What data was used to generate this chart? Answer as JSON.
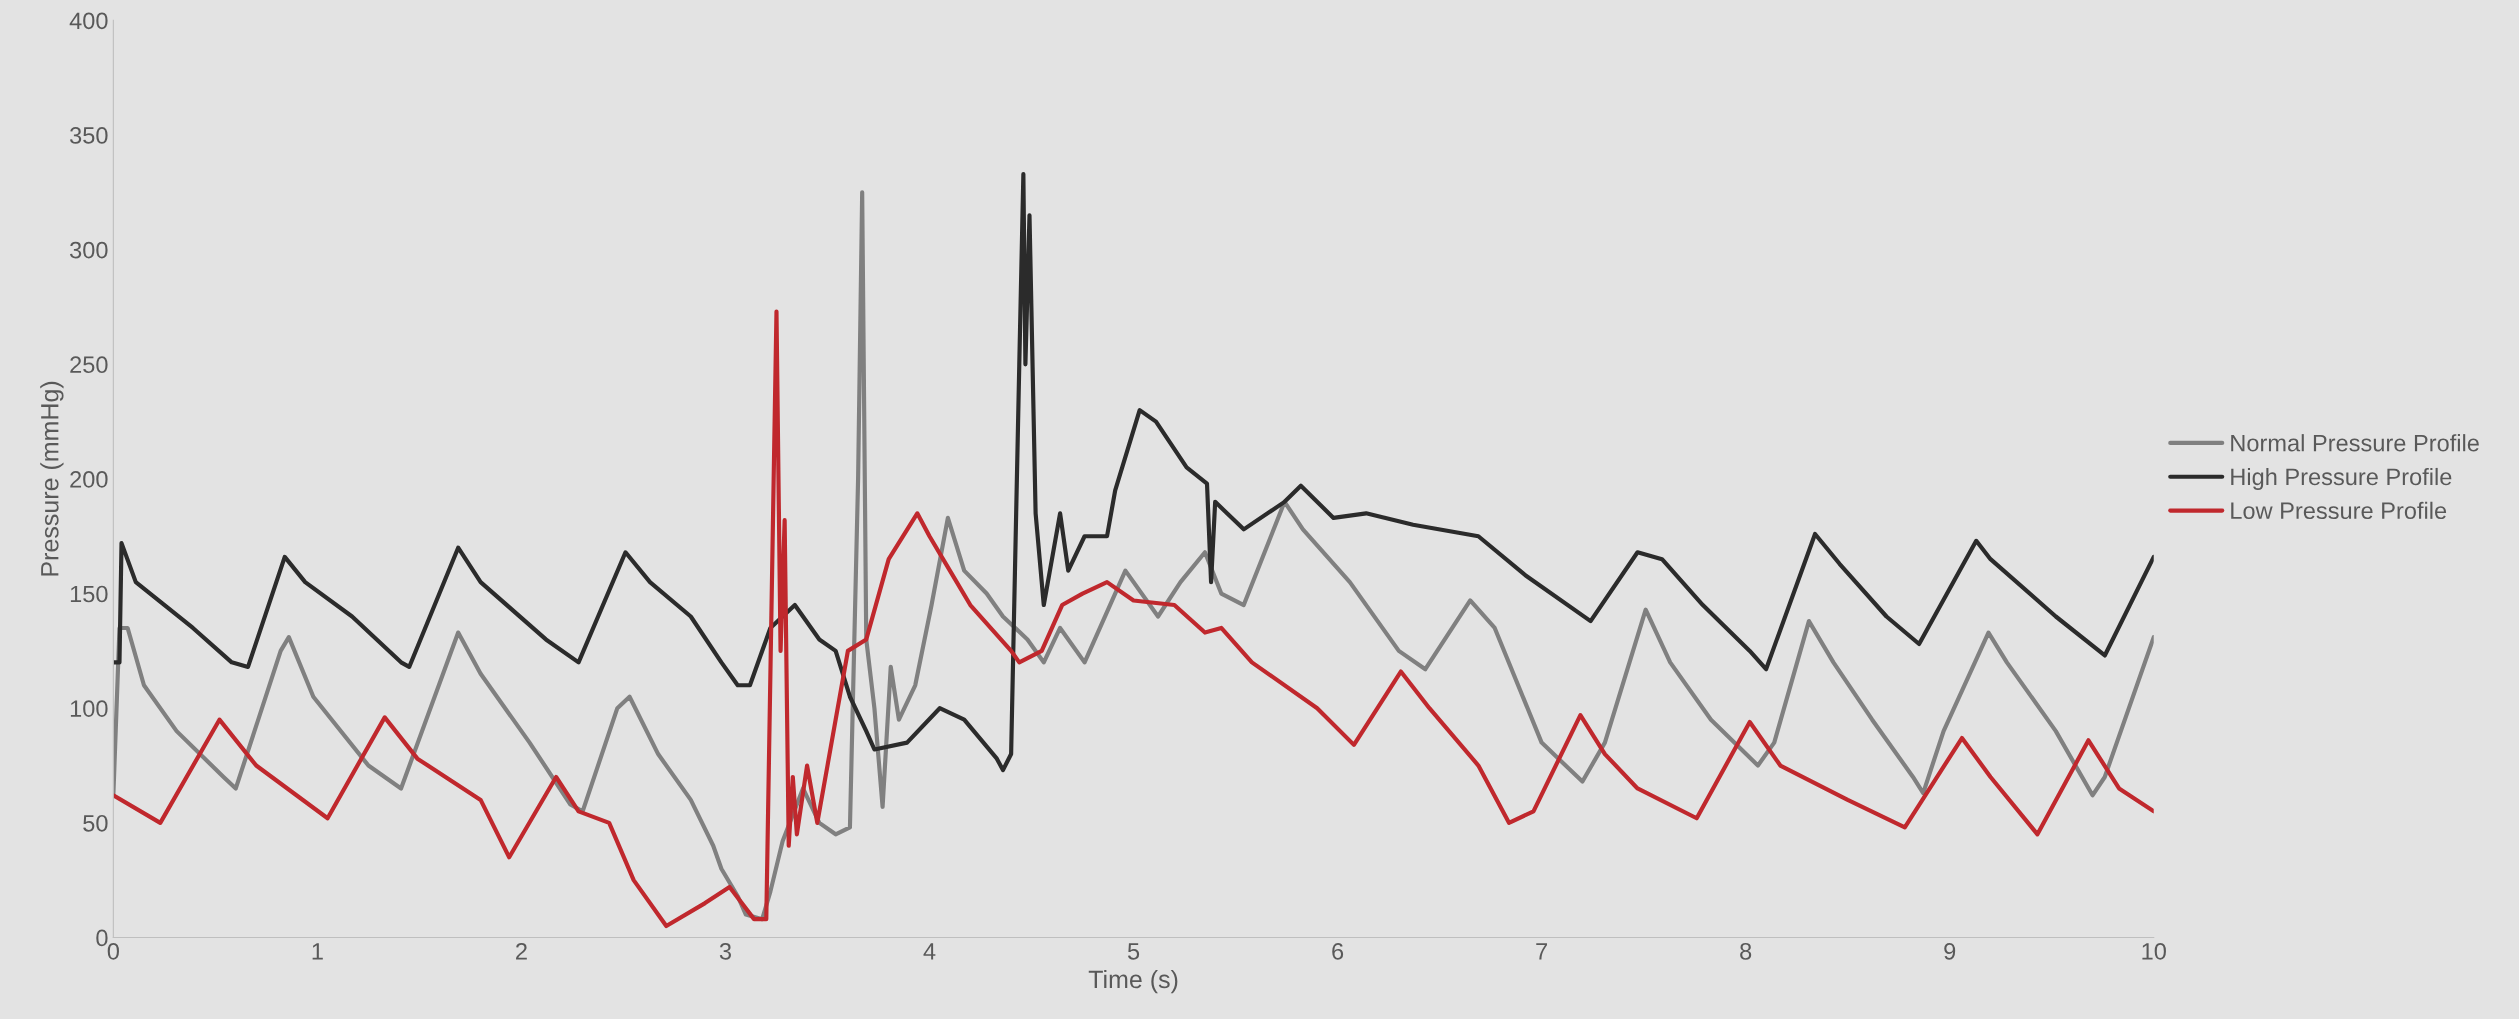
{
  "chart_data": {
    "type": "line",
    "xlabel": "Time (s)",
    "ylabel": "Pressure (mmHg)",
    "xlim": [
      0,
      10
    ],
    "ylim": [
      0,
      400
    ],
    "xticks": [
      0,
      1,
      2,
      3,
      4,
      5,
      6,
      7,
      8,
      9,
      10
    ],
    "yticks": [
      0,
      50,
      100,
      150,
      200,
      250,
      300,
      350,
      400
    ],
    "grid": false,
    "legend": "right",
    "marker": "none",
    "line_style": "solid",
    "series": [
      {
        "name": "Normal Pressure Profile",
        "color": "#808080",
        "x": [
          0,
          0.03,
          0.07,
          0.15,
          0.31,
          0.54,
          0.6,
          0.82,
          0.86,
          0.98,
          1.25,
          1.41,
          1.69,
          1.8,
          2.04,
          2.24,
          2.3,
          2.47,
          2.53,
          2.67,
          2.83,
          2.94,
          2.98,
          3.06,
          3.1,
          3.18,
          3.22,
          3.28,
          3.38,
          3.46,
          3.54,
          3.61,
          3.65,
          3.67,
          3.69,
          3.73,
          3.77,
          3.81,
          3.85,
          3.93,
          4.01,
          4.09,
          4.17,
          4.28,
          4.36,
          4.48,
          4.56,
          4.64,
          4.76,
          4.96,
          5.12,
          5.23,
          5.35,
          5.43,
          5.54,
          5.74,
          5.83,
          6.06,
          6.3,
          6.43,
          6.65,
          6.77,
          7.0,
          7.2,
          7.31,
          7.51,
          7.63,
          7.83,
          8.06,
          8.14,
          8.31,
          8.43,
          8.62,
          8.82,
          8.87,
          8.97,
          9.19,
          9.28,
          9.52,
          9.7,
          9.76,
          10
        ],
        "values": [
          62,
          135,
          135,
          110,
          90,
          70,
          65,
          125,
          131,
          105,
          75,
          65,
          133,
          115,
          85,
          58,
          55,
          100,
          105,
          80,
          60,
          40,
          30,
          18,
          10,
          8,
          20,
          42,
          65,
          50,
          45,
          48,
          200,
          325,
          130,
          100,
          57,
          118,
          95,
          110,
          145,
          183,
          160,
          150,
          140,
          130,
          120,
          135,
          120,
          160,
          140,
          155,
          168,
          150,
          145,
          190,
          178,
          155,
          125,
          117,
          147,
          135,
          85,
          68,
          85,
          143,
          120,
          95,
          75,
          85,
          138,
          120,
          95,
          70,
          63,
          90,
          133,
          120,
          90,
          62,
          70,
          131
        ]
      },
      {
        "name": "High Pressure Profile",
        "color": "#2b2b2b",
        "x": [
          0,
          0.03,
          0.04,
          0.11,
          0.39,
          0.58,
          0.66,
          0.84,
          0.94,
          1.17,
          1.41,
          1.45,
          1.69,
          1.8,
          2.12,
          2.28,
          2.51,
          2.63,
          2.83,
          2.98,
          3.06,
          3.12,
          3.22,
          3.34,
          3.46,
          3.54,
          3.61,
          3.69,
          3.73,
          3.89,
          4.05,
          4.17,
          4.33,
          4.36,
          4.4,
          4.44,
          4.46,
          4.47,
          4.49,
          4.52,
          4.56,
          4.64,
          4.68,
          4.76,
          4.87,
          4.91,
          5.03,
          5.11,
          5.26,
          5.36,
          5.38,
          5.4,
          5.54,
          5.74,
          5.82,
          5.98,
          6.14,
          6.37,
          6.69,
          6.92,
          7.24,
          7.47,
          7.59,
          7.79,
          8.02,
          8.1,
          8.34,
          8.46,
          8.69,
          8.85,
          9.13,
          9.2,
          9.52,
          9.76,
          10
        ],
        "values": [
          120,
          120,
          172,
          155,
          135,
          120,
          118,
          166,
          155,
          140,
          120,
          118,
          170,
          155,
          130,
          120,
          168,
          155,
          140,
          120,
          110,
          110,
          135,
          145,
          130,
          125,
          105,
          90,
          82,
          85,
          100,
          95,
          78,
          73,
          80,
          250,
          333,
          250,
          315,
          185,
          145,
          185,
          160,
          175,
          175,
          195,
          230,
          225,
          205,
          198,
          155,
          190,
          178,
          190,
          197,
          183,
          185,
          180,
          175,
          158,
          138,
          168,
          165,
          145,
          125,
          117,
          176,
          163,
          140,
          128,
          173,
          165,
          140,
          123,
          166
        ]
      },
      {
        "name": "Low Pressure Profile",
        "color": "#c0282d",
        "x": [
          0,
          0.23,
          0.52,
          0.7,
          1.05,
          1.33,
          1.49,
          1.8,
          1.94,
          2.17,
          2.28,
          2.43,
          2.55,
          2.71,
          2.9,
          3.02,
          3.14,
          3.2,
          3.25,
          3.27,
          3.29,
          3.31,
          3.33,
          3.35,
          3.4,
          3.45,
          3.5,
          3.55,
          3.6,
          3.69,
          3.8,
          3.94,
          4.0,
          4.1,
          4.2,
          4.4,
          4.44,
          4.55,
          4.65,
          4.75,
          4.87,
          5.0,
          5.2,
          5.35,
          5.43,
          5.58,
          5.9,
          6.08,
          6.31,
          6.45,
          6.69,
          6.84,
          6.96,
          7.19,
          7.31,
          7.47,
          7.76,
          8.02,
          8.17,
          8.5,
          8.78,
          9.06,
          9.2,
          9.43,
          9.68,
          9.83,
          10
        ],
        "values": [
          62,
          50,
          95,
          75,
          52,
          96,
          78,
          60,
          35,
          70,
          55,
          50,
          25,
          5,
          15,
          22,
          8,
          8,
          273,
          125,
          182,
          40,
          70,
          45,
          75,
          50,
          75,
          100,
          125,
          130,
          165,
          185,
          175,
          160,
          145,
          125,
          120,
          125,
          145,
          150,
          155,
          147,
          145,
          133,
          135,
          120,
          100,
          84,
          116,
          100,
          75,
          50,
          55,
          97,
          80,
          65,
          52,
          94,
          75,
          60,
          48,
          87,
          70,
          45,
          86,
          65,
          55
        ]
      }
    ]
  }
}
